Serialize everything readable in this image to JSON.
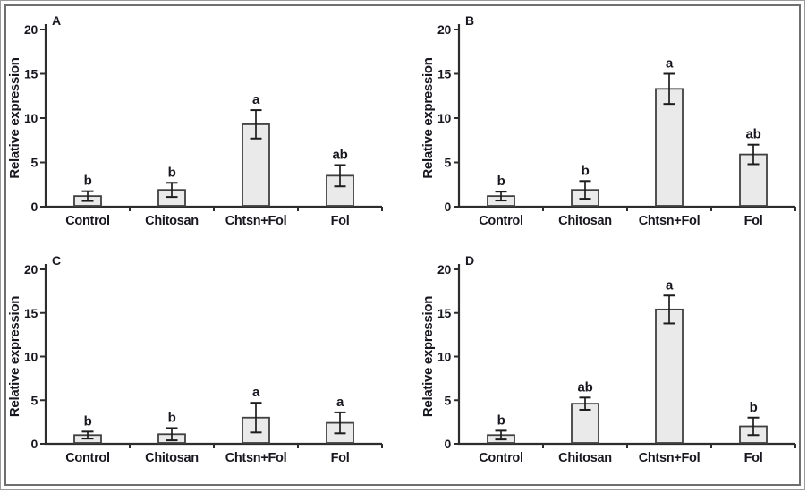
{
  "figure": {
    "ylabel": "Relative expression",
    "categories": [
      "Control",
      "Chitosan",
      "Chtsn+Fol",
      "Fol"
    ],
    "yticks": [
      0,
      5,
      10,
      15,
      20
    ],
    "ylim": [
      0,
      20
    ],
    "colors": {
      "bar_fill": "#eaeaea",
      "bar_stroke": "#404040",
      "axis": "#2d2d2d",
      "error_bar": "#1c1c1c",
      "text": "#17171f",
      "frame_outer": "#9a9a9a",
      "frame_inner": "#6f6f6f",
      "background": "#ffffff"
    }
  },
  "chart_data": [
    {
      "type": "bar",
      "panel_label": "A",
      "ylabel": "Relative expression",
      "ylim": [
        0,
        20
      ],
      "yticks": [
        0,
        5,
        10,
        15,
        20
      ],
      "grid": false,
      "legend": "none",
      "categories": [
        "Control",
        "Chitosan",
        "Chtsn+Fol",
        "Fol"
      ],
      "values": [
        1.2,
        1.9,
        9.3,
        3.5
      ],
      "errors": [
        0.55,
        0.8,
        1.6,
        1.2
      ],
      "sig_letters": [
        "b",
        "b",
        "a",
        "ab"
      ]
    },
    {
      "type": "bar",
      "panel_label": "B",
      "ylabel": "Relative expression",
      "ylim": [
        0,
        20
      ],
      "yticks": [
        0,
        5,
        10,
        15,
        20
      ],
      "grid": false,
      "legend": "none",
      "categories": [
        "Control",
        "Chitosan",
        "Chtsn+Fol",
        "Fol"
      ],
      "values": [
        1.2,
        1.9,
        13.3,
        5.9
      ],
      "errors": [
        0.5,
        1.0,
        1.7,
        1.1
      ],
      "sig_letters": [
        "b",
        "b",
        "a",
        "ab"
      ]
    },
    {
      "type": "bar",
      "panel_label": "C",
      "ylabel": "Relative expression",
      "ylim": [
        0,
        20
      ],
      "yticks": [
        0,
        5,
        10,
        15,
        20
      ],
      "grid": false,
      "legend": "none",
      "categories": [
        "Control",
        "Chitosan",
        "Chtsn+Fol",
        "Fol"
      ],
      "values": [
        1.0,
        1.1,
        3.0,
        2.4
      ],
      "errors": [
        0.4,
        0.7,
        1.7,
        1.2
      ],
      "sig_letters": [
        "b",
        "b",
        "a",
        "a"
      ]
    },
    {
      "type": "bar",
      "panel_label": "D",
      "ylabel": "Relative expression",
      "ylim": [
        0,
        20
      ],
      "yticks": [
        0,
        5,
        10,
        15,
        20
      ],
      "grid": false,
      "legend": "none",
      "categories": [
        "Control",
        "Chitosan",
        "Chtsn+Fol",
        "Fol"
      ],
      "values": [
        1.0,
        4.6,
        15.4,
        2.0
      ],
      "errors": [
        0.5,
        0.7,
        1.6,
        1.0
      ],
      "sig_letters": [
        "b",
        "ab",
        "a",
        "b"
      ]
    }
  ]
}
